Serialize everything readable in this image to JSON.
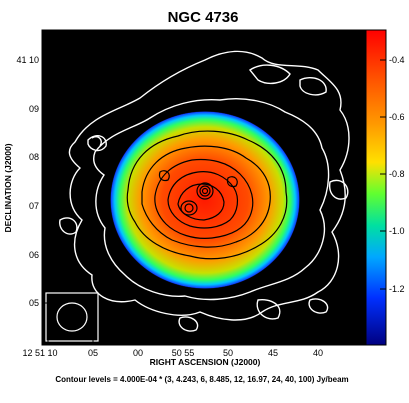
{
  "title": "NGC 4736",
  "x_axis": {
    "label": "RIGHT ASCENSION (J2000)",
    "ticks": [
      "12 51 10",
      "05",
      "00",
      "50 55",
      "50",
      "45",
      "40"
    ]
  },
  "y_axis": {
    "label": "DECLINATION (J2000)",
    "ticks": [
      "41 10",
      "09",
      "08",
      "07",
      "06",
      "05"
    ]
  },
  "colorbar": {
    "ticks": [
      "-0.4",
      "-0.6",
      "-0.8",
      "-1.0",
      "-1.2"
    ],
    "colors": [
      "#ff0000",
      "#ff7a00",
      "#ffd000",
      "#7aff00",
      "#00e060",
      "#00c8ff",
      "#0040ff",
      "#0000a0"
    ]
  },
  "caption": "Contour levels = 4.000E-04 * (3, 4.243, 6, 8.485, 12, 16.97, 24, 40, 100) Jy/beam",
  "colors": {
    "background": "#000000",
    "contour_outer": "#ffffff",
    "contour_inner": "#000000"
  }
}
